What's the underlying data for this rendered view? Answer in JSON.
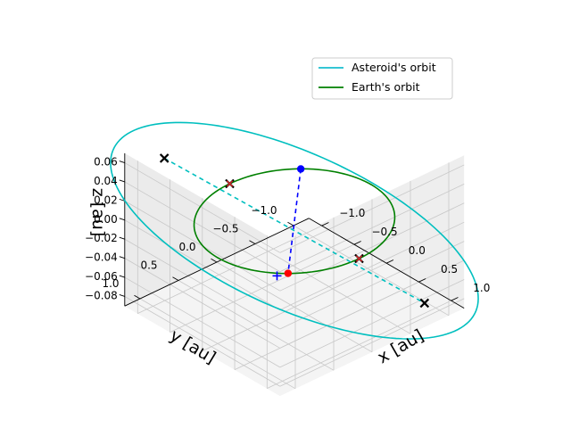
{
  "chart_data": {
    "type": "line",
    "projection": "3d",
    "xlabel": "x [au]",
    "ylabel": "y [au]",
    "zlabel": "z [au]",
    "xticks": [
      "−1.0",
      "−0.5",
      "0.0",
      "0.5",
      "1.0"
    ],
    "yticks": [
      "1.0",
      "0.5",
      "0.0",
      "−0.5",
      "−1.0"
    ],
    "zticks": [
      "0.06",
      "0.04",
      "0.02",
      "0.00",
      "−0.02",
      "−0.04",
      "−0.06",
      "−0.08"
    ],
    "xlim": [
      -1.2,
      1.2
    ],
    "ylim": [
      -1.2,
      1.2
    ],
    "zlim": [
      -0.09,
      0.07
    ],
    "grid": true,
    "legend": {
      "position": "top-right",
      "entries": [
        {
          "label": "Asteroid's orbit",
          "color": "#17becf"
        },
        {
          "label": "Earth's orbit",
          "color": "#008000"
        }
      ]
    },
    "series": [
      {
        "name": "Asteroid's orbit",
        "kind": "ellipse",
        "color": "#00bfbf",
        "center": [
          0.0,
          0.0,
          -0.01
        ],
        "axis_u": [
          1.3,
          -1.3,
          -0.07
        ],
        "axis_v": [
          -0.04,
          -0.04,
          0.085
        ]
      },
      {
        "name": "Earth's orbit",
        "kind": "circle",
        "color": "#008000",
        "center": [
          0.0,
          0.0,
          0.0
        ],
        "radius": 1.0
      }
    ],
    "lines": [
      {
        "id": "apsides",
        "color": "#00bfbf",
        "style": "dashed",
        "from": [
          -0.92,
          0.92,
          0.065
        ],
        "to": [
          0.92,
          -0.92,
          -0.085
        ]
      },
      {
        "id": "nodes",
        "color": "#0000ff",
        "style": "dashed",
        "from": [
          -0.72,
          -0.69,
          0.0
        ],
        "to": [
          0.72,
          0.69,
          0.0
        ]
      }
    ],
    "markers": [
      {
        "id": "aphelion",
        "symbol": "x",
        "color": "#000000",
        "xyz": [
          -0.92,
          0.92,
          0.065
        ]
      },
      {
        "id": "perihelion",
        "symbol": "x",
        "color": "#000000",
        "xyz": [
          0.92,
          -0.92,
          -0.085
        ]
      },
      {
        "id": "earth-x-left",
        "symbol": "x",
        "color": "#000000",
        "xyz": [
          -1.0,
          0.0,
          0.0
        ]
      },
      {
        "id": "earth-x-right",
        "symbol": "x",
        "color": "#000000",
        "xyz": [
          1.0,
          0.0,
          0.0
        ]
      },
      {
        "id": "earth-red-left",
        "symbol": "small-x",
        "color": "#d62728",
        "xyz": [
          -1.0,
          0.0,
          0.0
        ]
      },
      {
        "id": "earth-red-right",
        "symbol": "small-x",
        "color": "#d62728",
        "xyz": [
          1.0,
          0.0,
          0.0
        ]
      },
      {
        "id": "node-blue",
        "symbol": "circle",
        "color": "#0000ff",
        "xyz": [
          -0.72,
          -0.69,
          0.0
        ]
      },
      {
        "id": "node-red",
        "symbol": "circle",
        "color": "#ff0000",
        "xyz": [
          0.72,
          0.69,
          0.0
        ]
      },
      {
        "id": "node-plus",
        "symbol": "plus",
        "color": "#0000ff",
        "xyz": [
          0.68,
          0.8,
          0.0
        ]
      }
    ]
  }
}
